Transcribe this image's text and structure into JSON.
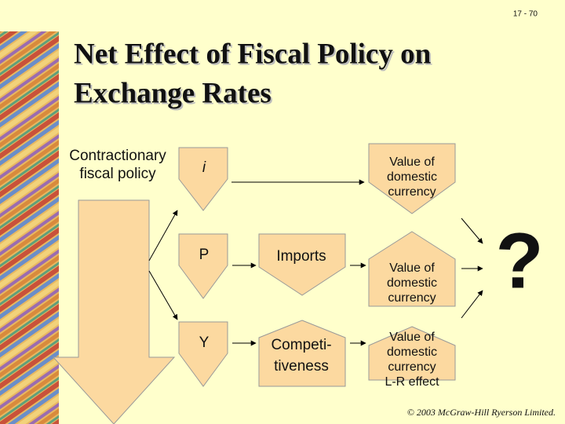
{
  "page_number": "17 - 70",
  "title": [
    "Net Effect of Fiscal Policy on",
    "Exchange Rates"
  ],
  "nodes": [
    {
      "lines": [
        "Contractionary",
        "fiscal policy"
      ]
    },
    {
      "lines": [
        "i"
      ]
    },
    {
      "lines": [
        "P"
      ]
    },
    {
      "lines": [
        "Y"
      ]
    },
    {
      "lines": [
        "Imports"
      ]
    },
    {
      "lines": [
        "Competi-",
        "tiveness"
      ]
    },
    {
      "lines": [
        "Value of",
        "domestic",
        "currency"
      ]
    },
    {
      "lines": [
        "Value of",
        "domestic",
        "currency"
      ]
    },
    {
      "lines": [
        "Value of",
        "domestic",
        "currency",
        "L-R effect"
      ]
    }
  ],
  "question": "?",
  "footer": "© 2003 McGraw-Hill Ryerson Limited."
}
